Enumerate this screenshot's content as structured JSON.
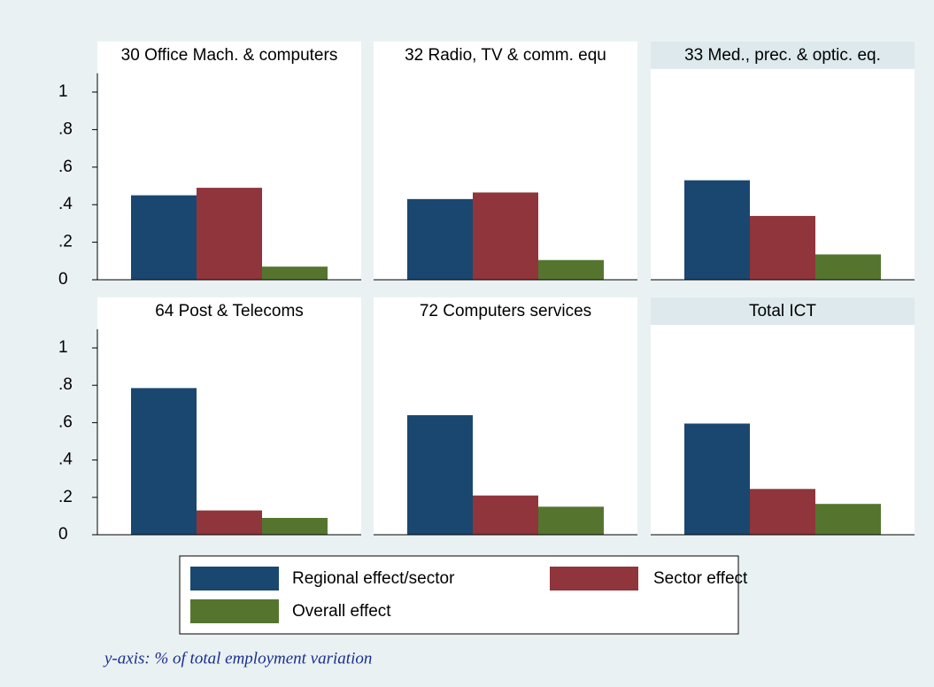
{
  "chart_data": {
    "type": "bar",
    "ylim": [
      0,
      1.1
    ],
    "yticks": [
      0,
      {
        "value": 0.2,
        "label": ".2"
      },
      {
        "value": 0.4,
        "label": ".4"
      },
      {
        "value": 0.6,
        "label": ".6"
      },
      {
        "value": 0.8,
        "label": ".8"
      },
      1
    ],
    "series": [
      {
        "name": "Regional effect/sector",
        "color": "#1a476f"
      },
      {
        "name": "Sector effect",
        "color": "#90353b"
      },
      {
        "name": "Overall effect",
        "color": "#55752f"
      }
    ],
    "panels": [
      {
        "title": "30 Office Mach. & computers",
        "values": [
          0.45,
          0.49,
          0.07
        ]
      },
      {
        "title": "32 Radio, TV & comm. equ",
        "values": [
          0.43,
          0.465,
          0.105
        ]
      },
      {
        "title": "33 Med., prec. & optic. eq.",
        "values": [
          0.53,
          0.34,
          0.135
        ]
      },
      {
        "title": "64 Post & Telecoms",
        "values": [
          0.785,
          0.13,
          0.09
        ]
      },
      {
        "title": "72 Computers services",
        "values": [
          0.64,
          0.21,
          0.15
        ]
      },
      {
        "title": "Total  ICT",
        "values": [
          0.595,
          0.245,
          0.165
        ]
      }
    ],
    "note": "y-axis: % of total employment variation"
  }
}
